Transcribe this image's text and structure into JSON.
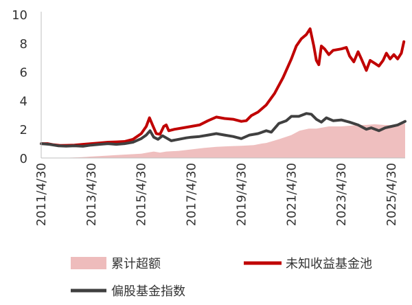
{
  "chart_data": {
    "type": "line",
    "title": "",
    "xlabel": "",
    "ylabel": "",
    "ylim": [
      0,
      10
    ],
    "y_ticks": [
      0,
      2,
      4,
      6,
      8,
      10
    ],
    "x_tick_labels": [
      "2011/4/30",
      "2013/4/30",
      "2015/4/30",
      "2017/4/30",
      "2019/4/30",
      "2021/4/30",
      "2023/4/30",
      "2025/4/30"
    ],
    "x_range": [
      2011.0,
      2025.55
    ],
    "grid": false,
    "legend_position": "bottom",
    "series": [
      {
        "name": "累计超额",
        "kind": "area",
        "color": "#eebcbc",
        "points": [
          [
            2011.0,
            0
          ],
          [
            2011.5,
            0
          ],
          [
            2012.0,
            0.02
          ],
          [
            2012.5,
            0.05
          ],
          [
            2013.0,
            0.1
          ],
          [
            2013.5,
            0.15
          ],
          [
            2014.0,
            0.2
          ],
          [
            2014.5,
            0.25
          ],
          [
            2015.0,
            0.3
          ],
          [
            2015.33,
            0.4
          ],
          [
            2015.5,
            0.45
          ],
          [
            2015.75,
            0.38
          ],
          [
            2016.0,
            0.45
          ],
          [
            2016.5,
            0.5
          ],
          [
            2017.0,
            0.6
          ],
          [
            2017.5,
            0.7
          ],
          [
            2018.0,
            0.78
          ],
          [
            2018.5,
            0.82
          ],
          [
            2019.0,
            0.85
          ],
          [
            2019.5,
            0.9
          ],
          [
            2019.8,
            1.0
          ],
          [
            2020.0,
            1.05
          ],
          [
            2020.5,
            1.3
          ],
          [
            2021.0,
            1.6
          ],
          [
            2021.33,
            1.9
          ],
          [
            2021.7,
            2.05
          ],
          [
            2022.0,
            2.05
          ],
          [
            2022.5,
            2.2
          ],
          [
            2023.0,
            2.2
          ],
          [
            2023.33,
            2.25
          ],
          [
            2023.7,
            2.3
          ],
          [
            2024.0,
            2.3
          ],
          [
            2024.33,
            2.35
          ],
          [
            2024.7,
            2.3
          ],
          [
            2025.0,
            2.28
          ],
          [
            2025.33,
            2.35
          ],
          [
            2025.55,
            2.4
          ]
        ]
      },
      {
        "name": "未知收益基金池",
        "kind": "line",
        "color": "#c00000",
        "points": [
          [
            2011.0,
            1.0
          ],
          [
            2011.25,
            1.0
          ],
          [
            2011.5,
            0.92
          ],
          [
            2011.75,
            0.87
          ],
          [
            2012.0,
            0.88
          ],
          [
            2012.33,
            0.9
          ],
          [
            2012.67,
            0.95
          ],
          [
            2013.0,
            1.0
          ],
          [
            2013.33,
            1.05
          ],
          [
            2013.67,
            1.1
          ],
          [
            2014.0,
            1.12
          ],
          [
            2014.33,
            1.15
          ],
          [
            2014.67,
            1.3
          ],
          [
            2015.0,
            1.7
          ],
          [
            2015.2,
            2.2
          ],
          [
            2015.33,
            2.8
          ],
          [
            2015.45,
            2.3
          ],
          [
            2015.6,
            1.7
          ],
          [
            2015.75,
            1.65
          ],
          [
            2015.9,
            2.2
          ],
          [
            2016.0,
            2.3
          ],
          [
            2016.1,
            1.9
          ],
          [
            2016.33,
            2.0
          ],
          [
            2016.67,
            2.1
          ],
          [
            2017.0,
            2.2
          ],
          [
            2017.33,
            2.3
          ],
          [
            2017.67,
            2.6
          ],
          [
            2018.0,
            2.85
          ],
          [
            2018.33,
            2.75
          ],
          [
            2018.67,
            2.7
          ],
          [
            2019.0,
            2.55
          ],
          [
            2019.2,
            2.6
          ],
          [
            2019.4,
            2.95
          ],
          [
            2019.67,
            3.2
          ],
          [
            2020.0,
            3.7
          ],
          [
            2020.33,
            4.5
          ],
          [
            2020.67,
            5.6
          ],
          [
            2021.0,
            6.9
          ],
          [
            2021.2,
            7.8
          ],
          [
            2021.4,
            8.3
          ],
          [
            2021.6,
            8.6
          ],
          [
            2021.75,
            9.0
          ],
          [
            2021.9,
            7.8
          ],
          [
            2022.0,
            6.8
          ],
          [
            2022.1,
            6.5
          ],
          [
            2022.2,
            7.8
          ],
          [
            2022.33,
            7.6
          ],
          [
            2022.5,
            7.2
          ],
          [
            2022.67,
            7.5
          ],
          [
            2023.0,
            7.6
          ],
          [
            2023.2,
            7.7
          ],
          [
            2023.33,
            7.1
          ],
          [
            2023.5,
            6.7
          ],
          [
            2023.67,
            7.4
          ],
          [
            2023.8,
            6.9
          ],
          [
            2024.0,
            6.1
          ],
          [
            2024.15,
            6.8
          ],
          [
            2024.33,
            6.6
          ],
          [
            2024.5,
            6.4
          ],
          [
            2024.67,
            6.8
          ],
          [
            2024.8,
            7.3
          ],
          [
            2024.95,
            6.9
          ],
          [
            2025.1,
            7.2
          ],
          [
            2025.25,
            6.9
          ],
          [
            2025.4,
            7.3
          ],
          [
            2025.5,
            8.1
          ]
        ]
      },
      {
        "name": "偏股基金指数",
        "kind": "line",
        "color": "#404040",
        "points": [
          [
            2011.0,
            1.0
          ],
          [
            2011.33,
            0.95
          ],
          [
            2011.67,
            0.85
          ],
          [
            2012.0,
            0.83
          ],
          [
            2012.33,
            0.85
          ],
          [
            2012.67,
            0.82
          ],
          [
            2013.0,
            0.9
          ],
          [
            2013.33,
            0.95
          ],
          [
            2013.67,
            1.0
          ],
          [
            2014.0,
            0.95
          ],
          [
            2014.33,
            1.0
          ],
          [
            2014.67,
            1.1
          ],
          [
            2015.0,
            1.35
          ],
          [
            2015.2,
            1.6
          ],
          [
            2015.35,
            1.9
          ],
          [
            2015.5,
            1.45
          ],
          [
            2015.67,
            1.3
          ],
          [
            2015.85,
            1.55
          ],
          [
            2016.0,
            1.4
          ],
          [
            2016.2,
            1.2
          ],
          [
            2016.5,
            1.3
          ],
          [
            2016.8,
            1.4
          ],
          [
            2017.0,
            1.45
          ],
          [
            2017.33,
            1.5
          ],
          [
            2017.67,
            1.6
          ],
          [
            2018.0,
            1.7
          ],
          [
            2018.33,
            1.6
          ],
          [
            2018.67,
            1.5
          ],
          [
            2019.0,
            1.35
          ],
          [
            2019.33,
            1.6
          ],
          [
            2019.67,
            1.7
          ],
          [
            2020.0,
            1.9
          ],
          [
            2020.2,
            1.8
          ],
          [
            2020.5,
            2.4
          ],
          [
            2020.8,
            2.6
          ],
          [
            2021.0,
            2.9
          ],
          [
            2021.3,
            2.9
          ],
          [
            2021.6,
            3.1
          ],
          [
            2021.8,
            3.05
          ],
          [
            2022.0,
            2.7
          ],
          [
            2022.2,
            2.5
          ],
          [
            2022.4,
            2.8
          ],
          [
            2022.67,
            2.6
          ],
          [
            2023.0,
            2.65
          ],
          [
            2023.33,
            2.5
          ],
          [
            2023.67,
            2.3
          ],
          [
            2024.0,
            2.0
          ],
          [
            2024.2,
            2.1
          ],
          [
            2024.5,
            1.9
          ],
          [
            2024.75,
            2.1
          ],
          [
            2025.0,
            2.2
          ],
          [
            2025.25,
            2.3
          ],
          [
            2025.55,
            2.55
          ]
        ]
      }
    ]
  },
  "legend": {
    "excess_label": "累计超额",
    "pool_label": "未知收益基金池",
    "index_label": "偏股基金指数"
  }
}
